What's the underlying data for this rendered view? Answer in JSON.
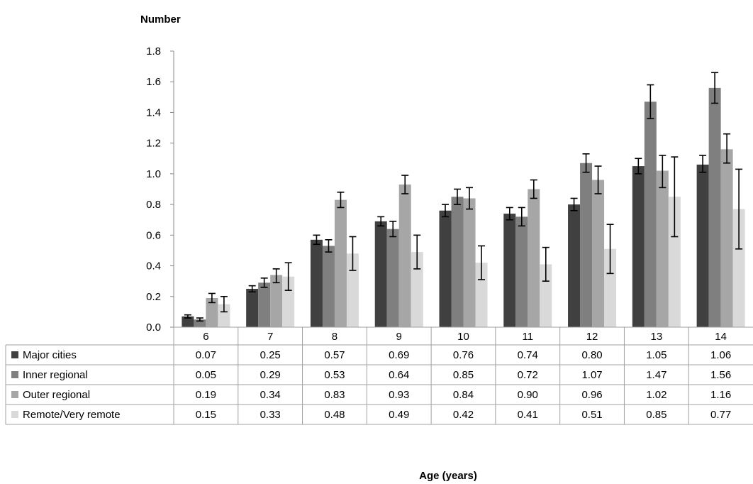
{
  "chart_data": {
    "type": "bar",
    "ylabel": "Number",
    "xlabel": "Age (years)",
    "ylim": [
      0,
      1.8
    ],
    "yticks": [
      "0.0",
      "0.2",
      "0.4",
      "0.6",
      "0.8",
      "1.0",
      "1.2",
      "1.4",
      "1.6",
      "1.8"
    ],
    "categories": [
      "6",
      "7",
      "8",
      "9",
      "10",
      "11",
      "12",
      "13",
      "14"
    ],
    "grid": false,
    "legend": "data-table",
    "series": [
      {
        "name": "Major cities",
        "color": "#404040",
        "values": [
          0.07,
          0.25,
          0.57,
          0.69,
          0.76,
          0.74,
          0.8,
          1.05,
          1.06
        ],
        "labels": [
          "0.07",
          "0.25",
          "0.57",
          "0.69",
          "0.76",
          "0.74",
          "0.80",
          "1.05",
          "1.06"
        ],
        "err_low": [
          0.06,
          0.23,
          0.54,
          0.66,
          0.72,
          0.7,
          0.76,
          1.0,
          1.01
        ],
        "err_high": [
          0.08,
          0.27,
          0.6,
          0.72,
          0.8,
          0.78,
          0.84,
          1.1,
          1.12
        ]
      },
      {
        "name": "Inner regional",
        "color": "#7f7f7f",
        "values": [
          0.05,
          0.29,
          0.53,
          0.64,
          0.85,
          0.72,
          1.07,
          1.47,
          1.56
        ],
        "labels": [
          "0.05",
          "0.29",
          "0.53",
          "0.64",
          "0.85",
          "0.72",
          "1.07",
          "1.47",
          "1.56"
        ],
        "err_low": [
          0.04,
          0.26,
          0.49,
          0.59,
          0.8,
          0.66,
          1.01,
          1.36,
          1.46
        ],
        "err_high": [
          0.06,
          0.32,
          0.57,
          0.69,
          0.9,
          0.78,
          1.13,
          1.58,
          1.66
        ]
      },
      {
        "name": "Outer regional",
        "color": "#a6a6a6",
        "values": [
          0.19,
          0.34,
          0.83,
          0.93,
          0.84,
          0.9,
          0.96,
          1.02,
          1.16
        ],
        "labels": [
          "0.19",
          "0.34",
          "0.83",
          "0.93",
          "0.84",
          "0.90",
          "0.96",
          "1.02",
          "1.16"
        ],
        "err_low": [
          0.16,
          0.29,
          0.78,
          0.87,
          0.77,
          0.84,
          0.87,
          0.91,
          1.07
        ],
        "err_high": [
          0.22,
          0.38,
          0.88,
          0.99,
          0.91,
          0.96,
          1.05,
          1.12,
          1.26
        ]
      },
      {
        "name": "Remote/Very remote",
        "color": "#d9d9d9",
        "values": [
          0.15,
          0.33,
          0.48,
          0.49,
          0.42,
          0.41,
          0.51,
          0.85,
          0.77
        ],
        "labels": [
          "0.15",
          "0.33",
          "0.48",
          "0.49",
          "0.42",
          "0.41",
          "0.51",
          "0.85",
          "0.77"
        ],
        "err_low": [
          0.1,
          0.24,
          0.37,
          0.38,
          0.31,
          0.3,
          0.35,
          0.59,
          0.51
        ],
        "err_high": [
          0.2,
          0.42,
          0.59,
          0.6,
          0.53,
          0.52,
          0.67,
          1.11,
          1.03
        ]
      }
    ]
  }
}
